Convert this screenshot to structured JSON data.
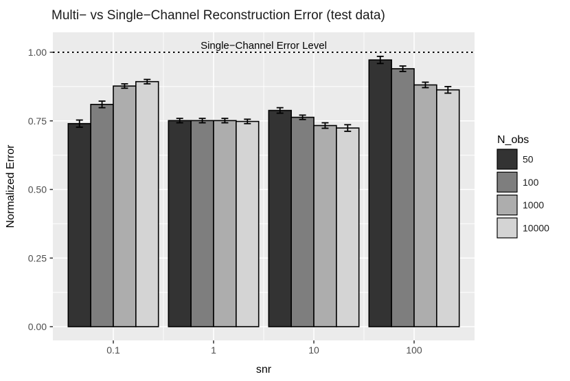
{
  "title": "Multi− vs Single−Channel Reconstruction Error (test data)",
  "chart_data": {
    "type": "bar",
    "title": "Multi− vs Single−Channel Reconstruction Error (test data)",
    "xlabel": "snr",
    "ylabel": "Normalized Error",
    "categories": [
      "0.1",
      "1",
      "10",
      "100"
    ],
    "series": [
      {
        "name": "50",
        "color": "#333333",
        "values": [
          0.74,
          0.751,
          0.788,
          0.972
        ],
        "errors": [
          0.013,
          0.008,
          0.01,
          0.013
        ]
      },
      {
        "name": "100",
        "color": "#7E7E7E",
        "values": [
          0.81,
          0.751,
          0.763,
          0.94
        ],
        "errors": [
          0.012,
          0.008,
          0.008,
          0.01
        ]
      },
      {
        "name": "1000",
        "color": "#ADADAD",
        "values": [
          0.877,
          0.751,
          0.733,
          0.881
        ],
        "errors": [
          0.008,
          0.008,
          0.01,
          0.01
        ]
      },
      {
        "name": "10000",
        "color": "#D4D4D4",
        "values": [
          0.893,
          0.748,
          0.724,
          0.863
        ],
        "errors": [
          0.008,
          0.008,
          0.012,
          0.012
        ]
      }
    ],
    "error_bars": true,
    "ytick_labels": [
      "0.00",
      "0.25",
      "0.50",
      "0.75",
      "1.00"
    ],
    "yticks": [
      0,
      0.25,
      0.5,
      0.75,
      1.0
    ],
    "yticks_minor": [
      0.125,
      0.375,
      0.625,
      0.875
    ],
    "ylim": [
      -0.05,
      1.073
    ],
    "grid": true,
    "reference_line": {
      "y": 1.0,
      "label": "Single−Channel Error Level",
      "style": "dotted",
      "color": "#000000"
    },
    "legend": {
      "title": "N_obs",
      "entries": [
        "50",
        "100",
        "1000",
        "10000"
      ],
      "position": "right"
    },
    "bar_dodge_width": 0.9
  },
  "colors": {
    "panel_bg": "#EBEBEB",
    "grid": "#FFFFFF",
    "bar_border": "#000000",
    "axis_text": "#4D4D4D",
    "tick_mark": "#333333",
    "title_text": "#1A1A1A"
  }
}
